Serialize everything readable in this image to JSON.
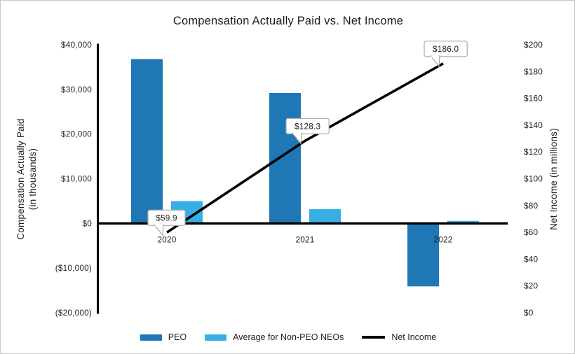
{
  "chart_data": {
    "type": "combo-bar-line",
    "title": "Compensation Actually Paid vs. Net Income",
    "categories": [
      "2020",
      "2021",
      "2022"
    ],
    "bar_series": [
      {
        "name": "PEO",
        "color": "#1F77B5",
        "axis": "left",
        "values": [
          36800,
          29200,
          -14100
        ]
      },
      {
        "name": "Average for Non-PEO NEOs",
        "color": "#38AFE4",
        "axis": "left",
        "values": [
          5000,
          3200,
          200
        ]
      }
    ],
    "line_series": {
      "name": "Net Income",
      "color": "#000000",
      "axis": "right",
      "values": [
        59.9,
        128.3,
        186.0
      ],
      "labels": [
        "$59.9",
        "$128.3",
        "$186.0"
      ]
    },
    "left_axis": {
      "label_line1": "Compensation Actually Paid",
      "label_line2": "(in thousands)",
      "range": [
        -20000,
        40000
      ],
      "tick_values": [
        40000,
        30000,
        20000,
        10000,
        0,
        -10000,
        -20000
      ],
      "ticks": [
        "$40,000",
        "$30,000",
        "$20,000",
        "$10,000",
        "$0",
        "($10,000)",
        "($20,000)"
      ]
    },
    "right_axis": {
      "label": "Net Income (in millions)",
      "range": [
        0,
        200
      ],
      "tick_values": [
        200,
        180,
        160,
        140,
        120,
        100,
        80,
        60,
        40,
        20,
        0
      ],
      "ticks": [
        "$200",
        "$180",
        "$160",
        "$140",
        "$120",
        "$100",
        "$80",
        "$60",
        "$40",
        "$20",
        "$0"
      ]
    },
    "grid": false,
    "legend_position": "bottom"
  }
}
